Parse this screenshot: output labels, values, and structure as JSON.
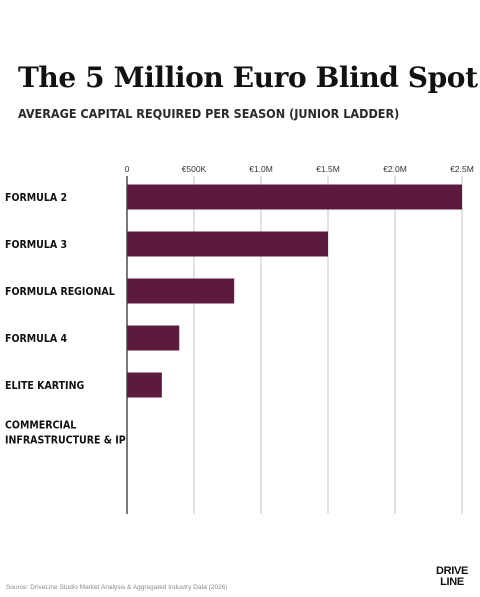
{
  "title": "The 5 Million Euro Blind Spot",
  "subtitle": "AVERAGE CAPITAL REQUIRED PER SEASON (JUNIOR LADDER)",
  "source": "Source: DriveLine Studio Market Analysis & Aggregated Industry Data (2026)",
  "logo": {
    "line1": "DRIVE",
    "line2": "LINE"
  },
  "colors": {
    "bar": "#5b1a3e",
    "grid": "#c4c4c4",
    "axis": "#222222",
    "text": "#111111"
  },
  "chart_data": {
    "type": "bar",
    "orientation": "horizontal",
    "title": "The 5 Million Euro Blind Spot",
    "subtitle": "AVERAGE CAPITAL REQUIRED PER SEASON (JUNIOR LADDER)",
    "xlabel": "",
    "ylabel": "",
    "xlim": [
      0,
      2500000
    ],
    "x_ticks": [
      0,
      500000,
      1000000,
      1500000,
      2000000,
      2500000
    ],
    "x_tick_labels": [
      "0",
      "€500K",
      "€1.0M",
      "€1.5M",
      "€2.0M",
      "€2.5M"
    ],
    "x_axis_position": "top",
    "grid": true,
    "categories": [
      {
        "lines": [
          "FORMULA 2"
        ]
      },
      {
        "lines": [
          "FORMULA 3"
        ]
      },
      {
        "lines": [
          "FORMULA REGIONAL"
        ]
      },
      {
        "lines": [
          "FORMULA 4"
        ]
      },
      {
        "lines": [
          "ELITE KARTING"
        ]
      },
      {
        "lines": [
          "COMMERCIAL",
          "INFRASTRUCTURE & IP"
        ]
      }
    ],
    "values": [
      2500000,
      1500000,
      800000,
      390000,
      260000,
      0
    ]
  }
}
